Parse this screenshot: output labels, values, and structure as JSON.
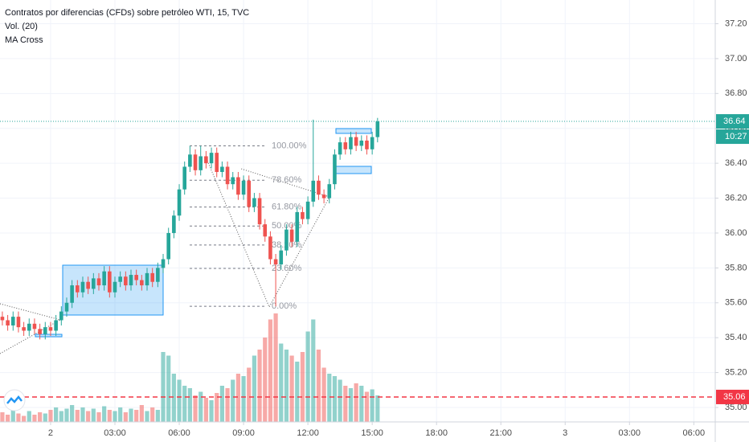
{
  "header": {
    "title": "Contratos por diferencias (CFDs) sobre petróleo WTI, 15, TVC",
    "indicators": [
      "Vol. (20)",
      "MA Cross"
    ]
  },
  "chart_data": {
    "type": "candlestick",
    "x": [
      -2.25,
      -2,
      -1.75,
      -1.5,
      -1.25,
      -1,
      -0.75,
      -0.5,
      -0.25,
      0,
      0.25,
      0.5,
      0.75,
      1,
      1.25,
      1.5,
      1.75,
      2,
      2.25,
      2.5,
      2.75,
      3,
      3.25,
      3.5,
      3.75,
      4,
      4.25,
      4.5,
      4.75,
      5,
      5.25,
      5.5,
      5.75,
      6,
      6.25,
      6.5,
      6.75,
      7,
      7.25,
      7.5,
      7.75,
      8,
      8.25,
      8.5,
      8.75,
      9,
      9.25,
      9.5,
      9.75,
      10,
      10.25,
      10.5,
      10.75,
      11,
      11.25,
      11.5,
      11.75,
      12,
      12.25,
      12.5,
      12.75,
      13,
      13.25,
      13.5,
      13.75,
      14,
      14.25,
      14.5,
      14.75,
      15,
      15.25
    ],
    "candles": [
      [
        35.52,
        35.55,
        35.47,
        35.5
      ],
      [
        35.5,
        35.53,
        35.44,
        35.47
      ],
      [
        35.47,
        35.55,
        35.44,
        35.52
      ],
      [
        35.52,
        35.55,
        35.43,
        35.46
      ],
      [
        35.46,
        35.49,
        35.41,
        35.44
      ],
      [
        35.44,
        35.51,
        35.41,
        35.48
      ],
      [
        35.48,
        35.51,
        35.42,
        35.45
      ],
      [
        35.45,
        35.48,
        35.39,
        35.42
      ],
      [
        35.42,
        35.49,
        35.39,
        35.46
      ],
      [
        35.46,
        35.49,
        35.41,
        35.44
      ],
      [
        35.44,
        35.53,
        35.41,
        35.5
      ],
      [
        35.5,
        35.58,
        35.47,
        35.55
      ],
      [
        35.55,
        35.63,
        35.52,
        35.6
      ],
      [
        35.6,
        35.73,
        35.57,
        35.7
      ],
      [
        35.7,
        35.73,
        35.63,
        35.66
      ],
      [
        35.66,
        35.75,
        35.63,
        35.72
      ],
      [
        35.72,
        35.75,
        35.65,
        35.68
      ],
      [
        35.68,
        35.77,
        35.65,
        35.74
      ],
      [
        35.74,
        35.77,
        35.67,
        35.7
      ],
      [
        35.7,
        35.81,
        35.67,
        35.78
      ],
      [
        35.78,
        35.81,
        35.63,
        35.66
      ],
      [
        35.66,
        35.75,
        35.63,
        35.72
      ],
      [
        35.72,
        35.78,
        35.69,
        35.75
      ],
      [
        35.75,
        35.78,
        35.67,
        35.7
      ],
      [
        35.7,
        35.79,
        35.67,
        35.76
      ],
      [
        35.76,
        35.79,
        35.7,
        35.73
      ],
      [
        35.73,
        35.76,
        35.67,
        35.7
      ],
      [
        35.7,
        35.8,
        35.67,
        35.77
      ],
      [
        35.77,
        35.8,
        35.69,
        35.72
      ],
      [
        35.72,
        35.83,
        35.69,
        35.8
      ],
      [
        35.8,
        35.88,
        35.77,
        35.85
      ],
      [
        35.85,
        36.03,
        35.82,
        36.0
      ],
      [
        36.0,
        36.13,
        35.97,
        36.1
      ],
      [
        36.1,
        36.28,
        36.07,
        36.25
      ],
      [
        36.25,
        36.41,
        36.22,
        36.38
      ],
      [
        36.38,
        36.5,
        36.35,
        36.45
      ],
      [
        36.45,
        36.48,
        36.33,
        36.36
      ],
      [
        36.36,
        36.5,
        36.33,
        36.44
      ],
      [
        36.44,
        36.47,
        36.37,
        36.4
      ],
      [
        36.4,
        36.49,
        36.37,
        36.46
      ],
      [
        36.46,
        36.49,
        36.32,
        36.35
      ],
      [
        36.35,
        36.41,
        36.32,
        36.38
      ],
      [
        36.38,
        36.41,
        36.25,
        36.28
      ],
      [
        36.28,
        36.35,
        36.25,
        36.32
      ],
      [
        36.32,
        36.35,
        36.19,
        36.22
      ],
      [
        36.22,
        36.33,
        36.19,
        36.3
      ],
      [
        36.3,
        36.33,
        36.12,
        36.15
      ],
      [
        36.15,
        36.23,
        36.12,
        36.2
      ],
      [
        36.2,
        36.23,
        36.02,
        36.05
      ],
      [
        36.05,
        36.08,
        35.95,
        35.98
      ],
      [
        35.98,
        36.01,
        35.82,
        35.85
      ],
      [
        35.85,
        35.88,
        35.58,
        35.82
      ],
      [
        35.82,
        35.93,
        35.79,
        35.9
      ],
      [
        35.9,
        36.05,
        35.87,
        36.02
      ],
      [
        36.02,
        36.05,
        35.92,
        35.95
      ],
      [
        35.95,
        36.15,
        35.92,
        36.12
      ],
      [
        36.12,
        36.15,
        36.05,
        36.08
      ],
      [
        36.08,
        36.21,
        36.05,
        36.18
      ],
      [
        36.18,
        36.65,
        36.15,
        36.3
      ],
      [
        36.3,
        36.33,
        36.19,
        36.22
      ],
      [
        36.22,
        36.25,
        36.17,
        36.2
      ],
      [
        36.2,
        36.31,
        36.17,
        36.28
      ],
      [
        36.28,
        36.48,
        36.25,
        36.45
      ],
      [
        36.45,
        36.55,
        36.42,
        36.52
      ],
      [
        36.52,
        36.55,
        36.45,
        36.48
      ],
      [
        36.48,
        36.58,
        36.45,
        36.55
      ],
      [
        36.55,
        36.58,
        36.47,
        36.5
      ],
      [
        36.5,
        36.56,
        36.47,
        36.53
      ],
      [
        36.53,
        36.56,
        36.45,
        36.48
      ],
      [
        36.48,
        36.58,
        36.45,
        36.55
      ],
      [
        36.55,
        36.66,
        36.52,
        36.64
      ]
    ],
    "volume": [
      8,
      6,
      10,
      7,
      5,
      9,
      6,
      8,
      7,
      10,
      12,
      9,
      11,
      14,
      10,
      12,
      9,
      11,
      8,
      13,
      10,
      9,
      12,
      8,
      11,
      10,
      14,
      9,
      12,
      10,
      58,
      55,
      40,
      35,
      30,
      28,
      22,
      25,
      20,
      18,
      24,
      30,
      28,
      35,
      40,
      38,
      45,
      55,
      60,
      70,
      85,
      90,
      65,
      60,
      55,
      50,
      58,
      75,
      85,
      60,
      45,
      40,
      38,
      35,
      30,
      28,
      32,
      30,
      25,
      27,
      22
    ],
    "volume_lim": [
      0,
      100
    ],
    "up_color": "#26a69a",
    "down_color": "#ef5350",
    "xlim": [
      -2.36,
      31.0
    ],
    "xticks": [
      {
        "value": 0,
        "label": "2"
      },
      {
        "value": 3,
        "label": "03:00"
      },
      {
        "value": 6,
        "label": "06:00"
      },
      {
        "value": 9,
        "label": "09:00"
      },
      {
        "value": 12,
        "label": "12:00"
      },
      {
        "value": 15,
        "label": "15:00"
      },
      {
        "value": 18,
        "label": "18:00"
      },
      {
        "value": 21,
        "label": "21:00"
      },
      {
        "value": 24,
        "label": "3"
      },
      {
        "value": 27,
        "label": "03:00"
      },
      {
        "value": 30,
        "label": "06:00"
      }
    ],
    "ylim": [
      34.917,
      37.336
    ],
    "yticks": [
      {
        "value": 35.0,
        "label": "35.00"
      },
      {
        "value": 35.2,
        "label": "35.20"
      },
      {
        "value": 35.4,
        "label": "35.40"
      },
      {
        "value": 35.6,
        "label": "35.60"
      },
      {
        "value": 35.8,
        "label": "35.80"
      },
      {
        "value": 36.0,
        "label": "36.00"
      },
      {
        "value": 36.2,
        "label": "36.20"
      },
      {
        "value": 36.4,
        "label": "36.40"
      },
      {
        "value": 36.6,
        "label": "36.60"
      },
      {
        "value": 36.8,
        "label": "36.80"
      },
      {
        "value": 37.0,
        "label": "37.00"
      },
      {
        "value": 37.2,
        "label": "37.20"
      }
    ],
    "grid": true,
    "fib_levels": [
      {
        "label": "100.00%",
        "value": 36.5
      },
      {
        "label": "78.60%",
        "value": 36.303
      },
      {
        "label": "61.80%",
        "value": 36.149
      },
      {
        "label": "50.00%",
        "value": 36.04
      },
      {
        "label": "38.20%",
        "value": 35.931
      },
      {
        "label": "23.60%",
        "value": 35.797
      },
      {
        "label": "0.00%",
        "value": 35.58
      }
    ],
    "last_price": 36.64,
    "countdown": "10:27",
    "alert_price": 35.06
  }
}
